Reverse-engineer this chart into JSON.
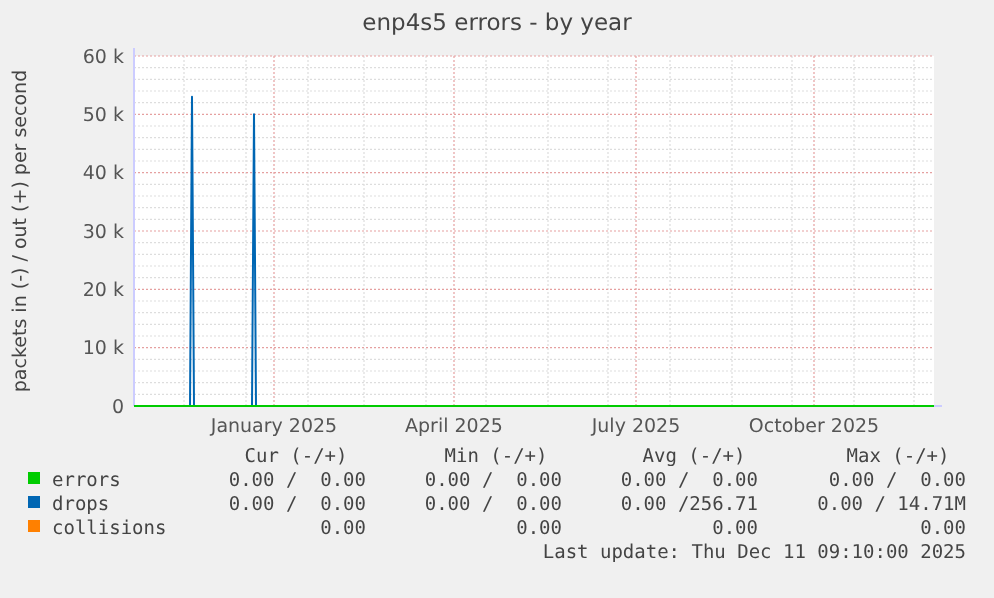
{
  "chart_data": {
    "type": "line",
    "title": "enp4s5 errors - by year",
    "ylabel": "packets in (-) / out (+) per second",
    "series": [
      {
        "name": "errors",
        "color": "#00cc00",
        "x": [
          "2024-11-06",
          "2025-12-11"
        ],
        "values": [
          0,
          0
        ]
      },
      {
        "name": "drops",
        "color": "#0066b3",
        "x": [
          "2024-11-06",
          "2024-12-04",
          "2024-12-05",
          "2024-12-06",
          "2025-01-04",
          "2025-01-05",
          "2025-01-06",
          "2025-12-11"
        ],
        "values": [
          0,
          0,
          53000,
          0,
          0,
          50000,
          0,
          0
        ]
      },
      {
        "name": "collisions",
        "color": "#ff8000"
      }
    ],
    "xlim": [
      "2024-11-06",
      "2025-12-11"
    ],
    "xticks": [
      {
        "value": "2025-01-15",
        "label": "January 2025"
      },
      {
        "value": "2025-04-15",
        "label": "April 2025"
      },
      {
        "value": "2025-07-15",
        "label": "July 2025"
      },
      {
        "value": "2025-10-12",
        "label": "October 2025"
      }
    ],
    "ylim": [
      0,
      60000
    ],
    "yticks": [
      0,
      {
        "value": 10000,
        "label": "10 k"
      },
      {
        "value": 20000,
        "label": "20 k"
      },
      {
        "value": 30000,
        "label": "30 k"
      },
      {
        "value": 40000,
        "label": "40 k"
      },
      {
        "value": 50000,
        "label": "50 k"
      },
      {
        "value": 60000,
        "label": "60 k"
      }
    ],
    "grid": true,
    "legend": "bottom",
    "annotations": [
      "Cur (-/+)",
      "Min (-/+)",
      "Avg (-/+)",
      "Max (-/+)",
      "0.00 /  0.00",
      "0.00 /  0.00",
      "0.00 /  0.00",
      "0.00 /  0.00",
      "0.00 /  0.00",
      "0.00 /  0.00",
      "0.00 /256.71",
      "0.00 / 14.71M",
      "0.00",
      "0.00",
      "0.00",
      "0.00",
      "Last update: Thu Dec 11 09:10:00 2025"
    ]
  }
}
